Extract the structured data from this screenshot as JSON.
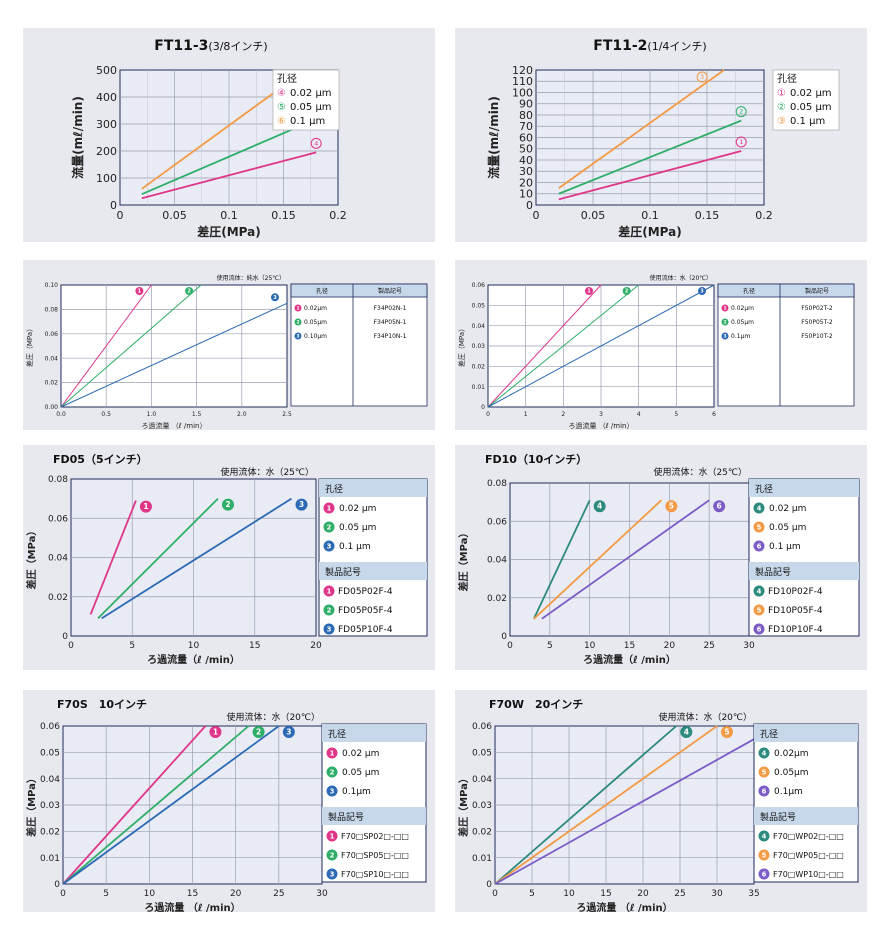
{
  "chart_data": [
    {
      "type": "line",
      "title": "FT11-3",
      "title_sub": "(3/8インチ)",
      "xlabel": "差圧(MPa)",
      "ylabel": "流量(mℓ/min)",
      "xlim": [
        0,
        0.2
      ],
      "ylim": [
        0,
        500
      ],
      "xticks": [
        "0",
        "0.05",
        "0.1",
        "0.15",
        "0.2"
      ],
      "xtickvals": [
        0,
        0.05,
        0.1,
        0.15,
        0.2
      ],
      "yticks": [
        "0",
        "100",
        "200",
        "300",
        "400",
        "500"
      ],
      "ytickvals": [
        0,
        100,
        200,
        300,
        400,
        500
      ],
      "legend_title": "孔径",
      "legend": [
        {
          "num": "④",
          "label": "0.02 μm",
          "color": "#e0368a"
        },
        {
          "num": "⑤",
          "label": "0.05 μm",
          "color": "#2fae68"
        },
        {
          "num": "⑥",
          "label": "0.1 μm",
          "color": "#f39a45"
        }
      ],
      "series": [
        {
          "num": "④",
          "color": "#e0368a",
          "x": [
            0.02,
            0.18
          ],
          "y": [
            25,
            195
          ]
        },
        {
          "num": "⑤",
          "color": "#2fae68",
          "x": [
            0.02,
            0.18
          ],
          "y": [
            40,
            318
          ]
        },
        {
          "num": "⑥",
          "color": "#f39a45",
          "x": [
            0.02,
            0.17
          ],
          "y": [
            60,
            500
          ]
        }
      ]
    },
    {
      "type": "line",
      "title": "FT11-2",
      "title_sub": "(1/4インチ)",
      "xlabel": "差圧(MPa)",
      "ylabel": "流量(mℓ/min)",
      "xlim": [
        0,
        0.2
      ],
      "ylim": [
        0,
        120
      ],
      "xticks": [
        "0",
        "0.05",
        "0.1",
        "0.15",
        "0.2"
      ],
      "xtickvals": [
        0,
        0.05,
        0.1,
        0.15,
        0.2
      ],
      "yticks": [
        "0",
        "10",
        "20",
        "30",
        "40",
        "50",
        "60",
        "70",
        "80",
        "90",
        "100",
        "110",
        "120"
      ],
      "ytickvals": [
        0,
        10,
        20,
        30,
        40,
        50,
        60,
        70,
        80,
        90,
        100,
        110,
        120
      ],
      "legend_title": "孔径",
      "legend": [
        {
          "num": "①",
          "label": "0.02 μm",
          "color": "#e0368a"
        },
        {
          "num": "②",
          "label": "0.05 μm",
          "color": "#2fae68"
        },
        {
          "num": "③",
          "label": "0.1 μm",
          "color": "#f39a45"
        }
      ],
      "series": [
        {
          "num": "①",
          "color": "#e0368a",
          "x": [
            0.02,
            0.18
          ],
          "y": [
            5,
            48
          ]
        },
        {
          "num": "②",
          "color": "#2fae68",
          "x": [
            0.02,
            0.18
          ],
          "y": [
            10,
            75
          ]
        },
        {
          "num": "③",
          "color": "#f39a45",
          "x": [
            0.02,
            0.165
          ],
          "y": [
            15,
            120
          ]
        }
      ]
    },
    {
      "type": "line",
      "title": "",
      "fluid": "使用流体：純水（25℃）",
      "xlabel": "ろ過流量 （ℓ /min）",
      "ylabel": "差圧（MPa）",
      "xlim": [
        0,
        2.5
      ],
      "ylim": [
        0,
        0.1
      ],
      "xticks": [
        "0.0",
        "0.5",
        "1.0",
        "1.5",
        "2.0",
        "2.5"
      ],
      "xtickvals": [
        0,
        0.5,
        1,
        1.5,
        2,
        2.5
      ],
      "yticks": [
        "0.00",
        "0.02",
        "0.04",
        "0.06",
        "0.08",
        "0.10"
      ],
      "ytickvals": [
        0,
        0.02,
        0.04,
        0.06,
        0.08,
        0.1
      ],
      "table_head": [
        "孔径",
        "製品記号"
      ],
      "table_rows": [
        {
          "num": "1",
          "color": "#e0368a",
          "size": "0.02μm",
          "code": "F34P02N-1"
        },
        {
          "num": "2",
          "color": "#2fae68",
          "size": "0.05μm",
          "code": "F34P05N-1"
        },
        {
          "num": "3",
          "color": "#2c6ab5",
          "size": "0.10μm",
          "code": "F34P10N-1"
        }
      ],
      "series": [
        {
          "num": "1",
          "color": "#e0368a",
          "x": [
            0,
            1.0
          ],
          "y": [
            0,
            0.1
          ]
        },
        {
          "num": "2",
          "color": "#2fae68",
          "x": [
            0,
            1.55
          ],
          "y": [
            0,
            0.1
          ]
        },
        {
          "num": "3",
          "color": "#2c6ab5",
          "x": [
            0,
            2.5
          ],
          "y": [
            0,
            0.085
          ]
        }
      ]
    },
    {
      "type": "line",
      "title": "",
      "fluid": "使用流体：水（20℃）",
      "xlabel": "ろ過流量 （ℓ /min）",
      "ylabel": "差圧（MPa）",
      "xlim": [
        0,
        6
      ],
      "ylim": [
        0,
        0.06
      ],
      "xticks": [
        "0",
        "1",
        "2",
        "3",
        "4",
        "5",
        "6"
      ],
      "xtickvals": [
        0,
        1,
        2,
        3,
        4,
        5,
        6
      ],
      "yticks": [
        "0",
        "0.01",
        "0.02",
        "0.03",
        "0.04",
        "0.05",
        "0.06"
      ],
      "ytickvals": [
        0,
        0.01,
        0.02,
        0.03,
        0.04,
        0.05,
        0.06
      ],
      "table_head": [
        "孔径",
        "製品記号"
      ],
      "table_rows": [
        {
          "num": "1",
          "color": "#e0368a",
          "size": "0.02μm",
          "code": "F50P02T-2"
        },
        {
          "num": "2",
          "color": "#2fae68",
          "size": "0.05μm",
          "code": "F50P05T-2"
        },
        {
          "num": "3",
          "color": "#2c6ab5",
          "size": "0.1μm",
          "code": "F50P10T-2"
        }
      ],
      "series": [
        {
          "num": "1",
          "color": "#e0368a",
          "x": [
            0,
            3
          ],
          "y": [
            0,
            0.06
          ]
        },
        {
          "num": "2",
          "color": "#2fae68",
          "x": [
            0,
            4
          ],
          "y": [
            0,
            0.06
          ]
        },
        {
          "num": "3",
          "color": "#2c6ab5",
          "x": [
            0,
            6
          ],
          "y": [
            0,
            0.06
          ]
        }
      ]
    },
    {
      "type": "line",
      "title": "FD05（5インチ）",
      "fluid": "使用流体：水（25℃）",
      "xlabel": "ろ過流量（ℓ /min）",
      "ylabel": "差圧（MPa）",
      "xlim": [
        0,
        20
      ],
      "ylim": [
        0,
        0.08
      ],
      "xticks": [
        "0",
        "5",
        "10",
        "15",
        "20"
      ],
      "xtickvals": [
        0,
        5,
        10,
        15,
        20
      ],
      "yticks": [
        "0",
        "0.02",
        "0.04",
        "0.06",
        "0.08"
      ],
      "ytickvals": [
        0,
        0.02,
        0.04,
        0.06,
        0.08
      ],
      "side_head1": "孔径",
      "side_head2": "製品記号",
      "sizes": [
        {
          "num": "1",
          "color": "#e0368a",
          "label": "0.02 μm"
        },
        {
          "num": "2",
          "color": "#2fae68",
          "label": "0.05 μm"
        },
        {
          "num": "3",
          "color": "#2c6ab5",
          "label": "0.1 μm"
        }
      ],
      "codes": [
        {
          "num": "1",
          "color": "#e0368a",
          "label": "FD05P02F-4"
        },
        {
          "num": "2",
          "color": "#2fae68",
          "label": "FD05P05F-4"
        },
        {
          "num": "3",
          "color": "#2c6ab5",
          "label": "FD05P10F-4"
        }
      ],
      "series": [
        {
          "num": "1",
          "color": "#e0368a",
          "x": [
            1.6,
            5.3
          ],
          "y": [
            0.011,
            0.069
          ]
        },
        {
          "num": "2",
          "color": "#2fae68",
          "x": [
            2.2,
            12
          ],
          "y": [
            0.009,
            0.07
          ]
        },
        {
          "num": "3",
          "color": "#2c6ab5",
          "x": [
            2.5,
            18
          ],
          "y": [
            0.009,
            0.07
          ]
        }
      ]
    },
    {
      "type": "line",
      "title": "FD10（10インチ）",
      "fluid": "使用流体：水（25℃）",
      "xlabel": "ろ過流量（ℓ /min）",
      "ylabel": "差圧（MPa）",
      "xlim": [
        0,
        30
      ],
      "ylim": [
        0,
        0.08
      ],
      "xticks": [
        "0",
        "5",
        "10",
        "15",
        "20",
        "25",
        "30"
      ],
      "xtickvals": [
        0,
        5,
        10,
        15,
        20,
        25,
        30
      ],
      "yticks": [
        "0",
        "0.02",
        "0.04",
        "0.06",
        "0.08"
      ],
      "ytickvals": [
        0,
        0.02,
        0.04,
        0.06,
        0.08
      ],
      "side_head1": "孔径",
      "side_head2": "製品記号",
      "sizes": [
        {
          "num": "4",
          "color": "#2d8a7e",
          "label": "0.02 μm"
        },
        {
          "num": "5",
          "color": "#f39a45",
          "label": "0.05 μm"
        },
        {
          "num": "6",
          "color": "#7b5cc7",
          "label": "0.1 μm"
        }
      ],
      "codes": [
        {
          "num": "4",
          "color": "#2d8a7e",
          "label": "FD10P02F-4"
        },
        {
          "num": "5",
          "color": "#f39a45",
          "label": "FD10P05F-4"
        },
        {
          "num": "6",
          "color": "#7b5cc7",
          "label": "FD10P10F-4"
        }
      ],
      "series": [
        {
          "num": "4",
          "color": "#2d8a7e",
          "x": [
            3,
            10
          ],
          "y": [
            0.009,
            0.071
          ]
        },
        {
          "num": "5",
          "color": "#f39a45",
          "x": [
            3,
            19
          ],
          "y": [
            0.009,
            0.071
          ]
        },
        {
          "num": "6",
          "color": "#7b5cc7",
          "x": [
            4,
            25
          ],
          "y": [
            0.009,
            0.071
          ]
        }
      ]
    },
    {
      "type": "line",
      "title": "F70S　10インチ",
      "fluid": "使用流体：水（20℃）",
      "xlabel": "ろ過流量 （ℓ /min）",
      "ylabel": "差圧（MPa）",
      "xlim": [
        0,
        30
      ],
      "ylim": [
        0,
        0.06
      ],
      "xticks": [
        "0",
        "5",
        "10",
        "15",
        "20",
        "25",
        "30"
      ],
      "xtickvals": [
        0,
        5,
        10,
        15,
        20,
        25,
        30
      ],
      "yticks": [
        "0",
        "0.01",
        "0.02",
        "0.03",
        "0.04",
        "0.05",
        "0.06"
      ],
      "ytickvals": [
        0,
        0.01,
        0.02,
        0.03,
        0.04,
        0.05,
        0.06
      ],
      "side_head1": "孔径",
      "side_head2": "製品記号",
      "sizes": [
        {
          "num": "1",
          "color": "#e0368a",
          "label": "0.02 μm"
        },
        {
          "num": "2",
          "color": "#2fae68",
          "label": "0.05 μm"
        },
        {
          "num": "3",
          "color": "#2c6ab5",
          "label": "0.1μm"
        }
      ],
      "codes": [
        {
          "num": "1",
          "color": "#e0368a",
          "label": "F70□SP02□-□□"
        },
        {
          "num": "2",
          "color": "#2fae68",
          "label": "F70□SP05□-□□"
        },
        {
          "num": "3",
          "color": "#2c6ab5",
          "label": "F70□SP10□-□□"
        }
      ],
      "series": [
        {
          "num": "1",
          "color": "#e0368a",
          "x": [
            0,
            16.5
          ],
          "y": [
            0,
            0.06
          ]
        },
        {
          "num": "2",
          "color": "#2fae68",
          "x": [
            0,
            21.5
          ],
          "y": [
            0,
            0.06
          ]
        },
        {
          "num": "3",
          "color": "#2c6ab5",
          "x": [
            0,
            25
          ],
          "y": [
            0,
            0.06
          ]
        }
      ]
    },
    {
      "type": "line",
      "title": "F70W　20インチ",
      "fluid": "使用流体：水（20℃）",
      "xlabel": "ろ過流量 （ℓ /min）",
      "ylabel": "差圧（MPa）",
      "xlim": [
        0,
        35
      ],
      "ylim": [
        0,
        0.06
      ],
      "xticks": [
        "0",
        "5",
        "10",
        "15",
        "20",
        "25",
        "30",
        "35"
      ],
      "xtickvals": [
        0,
        5,
        10,
        15,
        20,
        25,
        30,
        35
      ],
      "yticks": [
        "0",
        "0.01",
        "0.02",
        "0.03",
        "0.04",
        "0.05",
        "0.06"
      ],
      "ytickvals": [
        0,
        0.01,
        0.02,
        0.03,
        0.04,
        0.05,
        0.06
      ],
      "side_head1": "孔径",
      "side_head2": "製品記号",
      "sizes": [
        {
          "num": "4",
          "color": "#2d8a7e",
          "label": "0.02μm"
        },
        {
          "num": "5",
          "color": "#f39a45",
          "label": "0.05μm"
        },
        {
          "num": "6",
          "color": "#7b5cc7",
          "label": "0.1μm"
        }
      ],
      "codes": [
        {
          "num": "4",
          "color": "#2d8a7e",
          "label": "F70□WP02□-□□"
        },
        {
          "num": "5",
          "color": "#f39a45",
          "label": "F70□WP05□-□□"
        },
        {
          "num": "6",
          "color": "#7b5cc7",
          "label": "F70□WP10□-□□"
        }
      ],
      "series": [
        {
          "num": "4",
          "color": "#2d8a7e",
          "x": [
            0,
            24.5
          ],
          "y": [
            0,
            0.06
          ]
        },
        {
          "num": "5",
          "color": "#f39a45",
          "x": [
            0,
            30
          ],
          "y": [
            0,
            0.06
          ]
        },
        {
          "num": "6",
          "color": "#7b5cc7",
          "x": [
            0,
            35
          ],
          "y": [
            0,
            0.055
          ]
        }
      ]
    }
  ]
}
